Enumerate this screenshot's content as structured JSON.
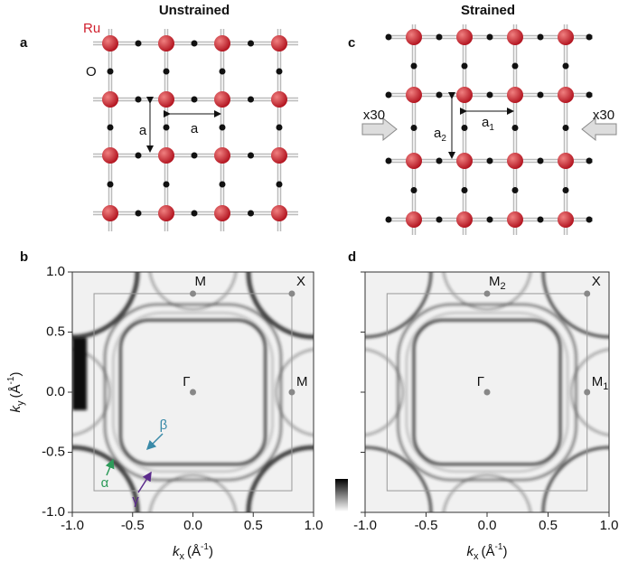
{
  "titles": [
    "Unstrained",
    "Strained"
  ],
  "panel_labels": [
    "a",
    "b",
    "c",
    "d"
  ],
  "lattice_a": {
    "ru": "Ru",
    "o": "O",
    "a_vertical": "a",
    "a_horizontal": "a"
  },
  "lattice_c": {
    "a2": {
      "symbol": "a",
      "subscript": "2"
    },
    "a1": {
      "symbol": "a",
      "subscript": "1"
    },
    "arrow_left": "x30",
    "arrow_right": "x30"
  },
  "chart_data": [
    {
      "type": "image",
      "zone_boundary": 0.82,
      "xlabel": {
        "symbol": "k",
        "subscript": "x",
        "unit": "(Å",
        "exponent": "-1",
        "close": ")"
      },
      "ylabel": {
        "symbol": "k",
        "subscript": "y",
        "unit": "(Å",
        "exponent": "-1",
        "close": ")"
      },
      "xlim": [
        -1,
        1
      ],
      "ylim": [
        -1,
        1
      ],
      "xticks": [
        {
          "value": -1,
          "label": "-1.0"
        },
        {
          "value": -0.5,
          "label": "-0.5"
        },
        {
          "value": 0,
          "label": "0.0"
        },
        {
          "value": 0.5,
          "label": "0.5"
        },
        {
          "value": 1,
          "label": "1.0"
        }
      ],
      "yticks": [
        {
          "value": -1,
          "label": "-1.0"
        },
        {
          "value": -0.5,
          "label": "-0.5"
        },
        {
          "value": 0,
          "label": "0.0"
        },
        {
          "value": 0.5,
          "label": "0.5"
        },
        {
          "value": 1,
          "label": "1.0"
        }
      ],
      "points": [
        {
          "label": "M",
          "x": 0,
          "y": 0.82
        },
        {
          "label": "X",
          "x": 0.82,
          "y": 0.82
        },
        {
          "label": "Γ",
          "x": 0,
          "y": 0
        },
        {
          "label": "M",
          "x": 0.82,
          "y": 0
        }
      ],
      "bands": [
        {
          "label": "α",
          "color": "#2e9b5a"
        },
        {
          "label": "β",
          "color": "#3a8aa8"
        },
        {
          "label": "γ",
          "color": "#5b2a8c"
        }
      ]
    },
    {
      "type": "image",
      "zone_boundary": 0.82,
      "xlabel": {
        "symbol": "k",
        "subscript": "x",
        "unit": "(Å",
        "exponent": "-1",
        "close": ")"
      },
      "xlim": [
        -1,
        1
      ],
      "ylim": [
        -1,
        1
      ],
      "xticks": [
        {
          "value": -1,
          "label": "-1.0"
        },
        {
          "value": -0.5,
          "label": "-0.5"
        },
        {
          "value": 0,
          "label": "0.0"
        },
        {
          "value": 0.5,
          "label": "0.5"
        },
        {
          "value": 1,
          "label": "1.0"
        }
      ],
      "yticks": [
        -1,
        -0.5,
        0,
        0.5,
        1
      ],
      "points": [
        {
          "label": "M",
          "subscript": "2",
          "x": 0,
          "y": 0.82
        },
        {
          "label": "X",
          "x": 0.82,
          "y": 0.82
        },
        {
          "label": "Γ",
          "x": 0,
          "y": 0
        },
        {
          "label": "M",
          "subscript": "1",
          "x": 0.82,
          "y": 0
        }
      ]
    }
  ]
}
